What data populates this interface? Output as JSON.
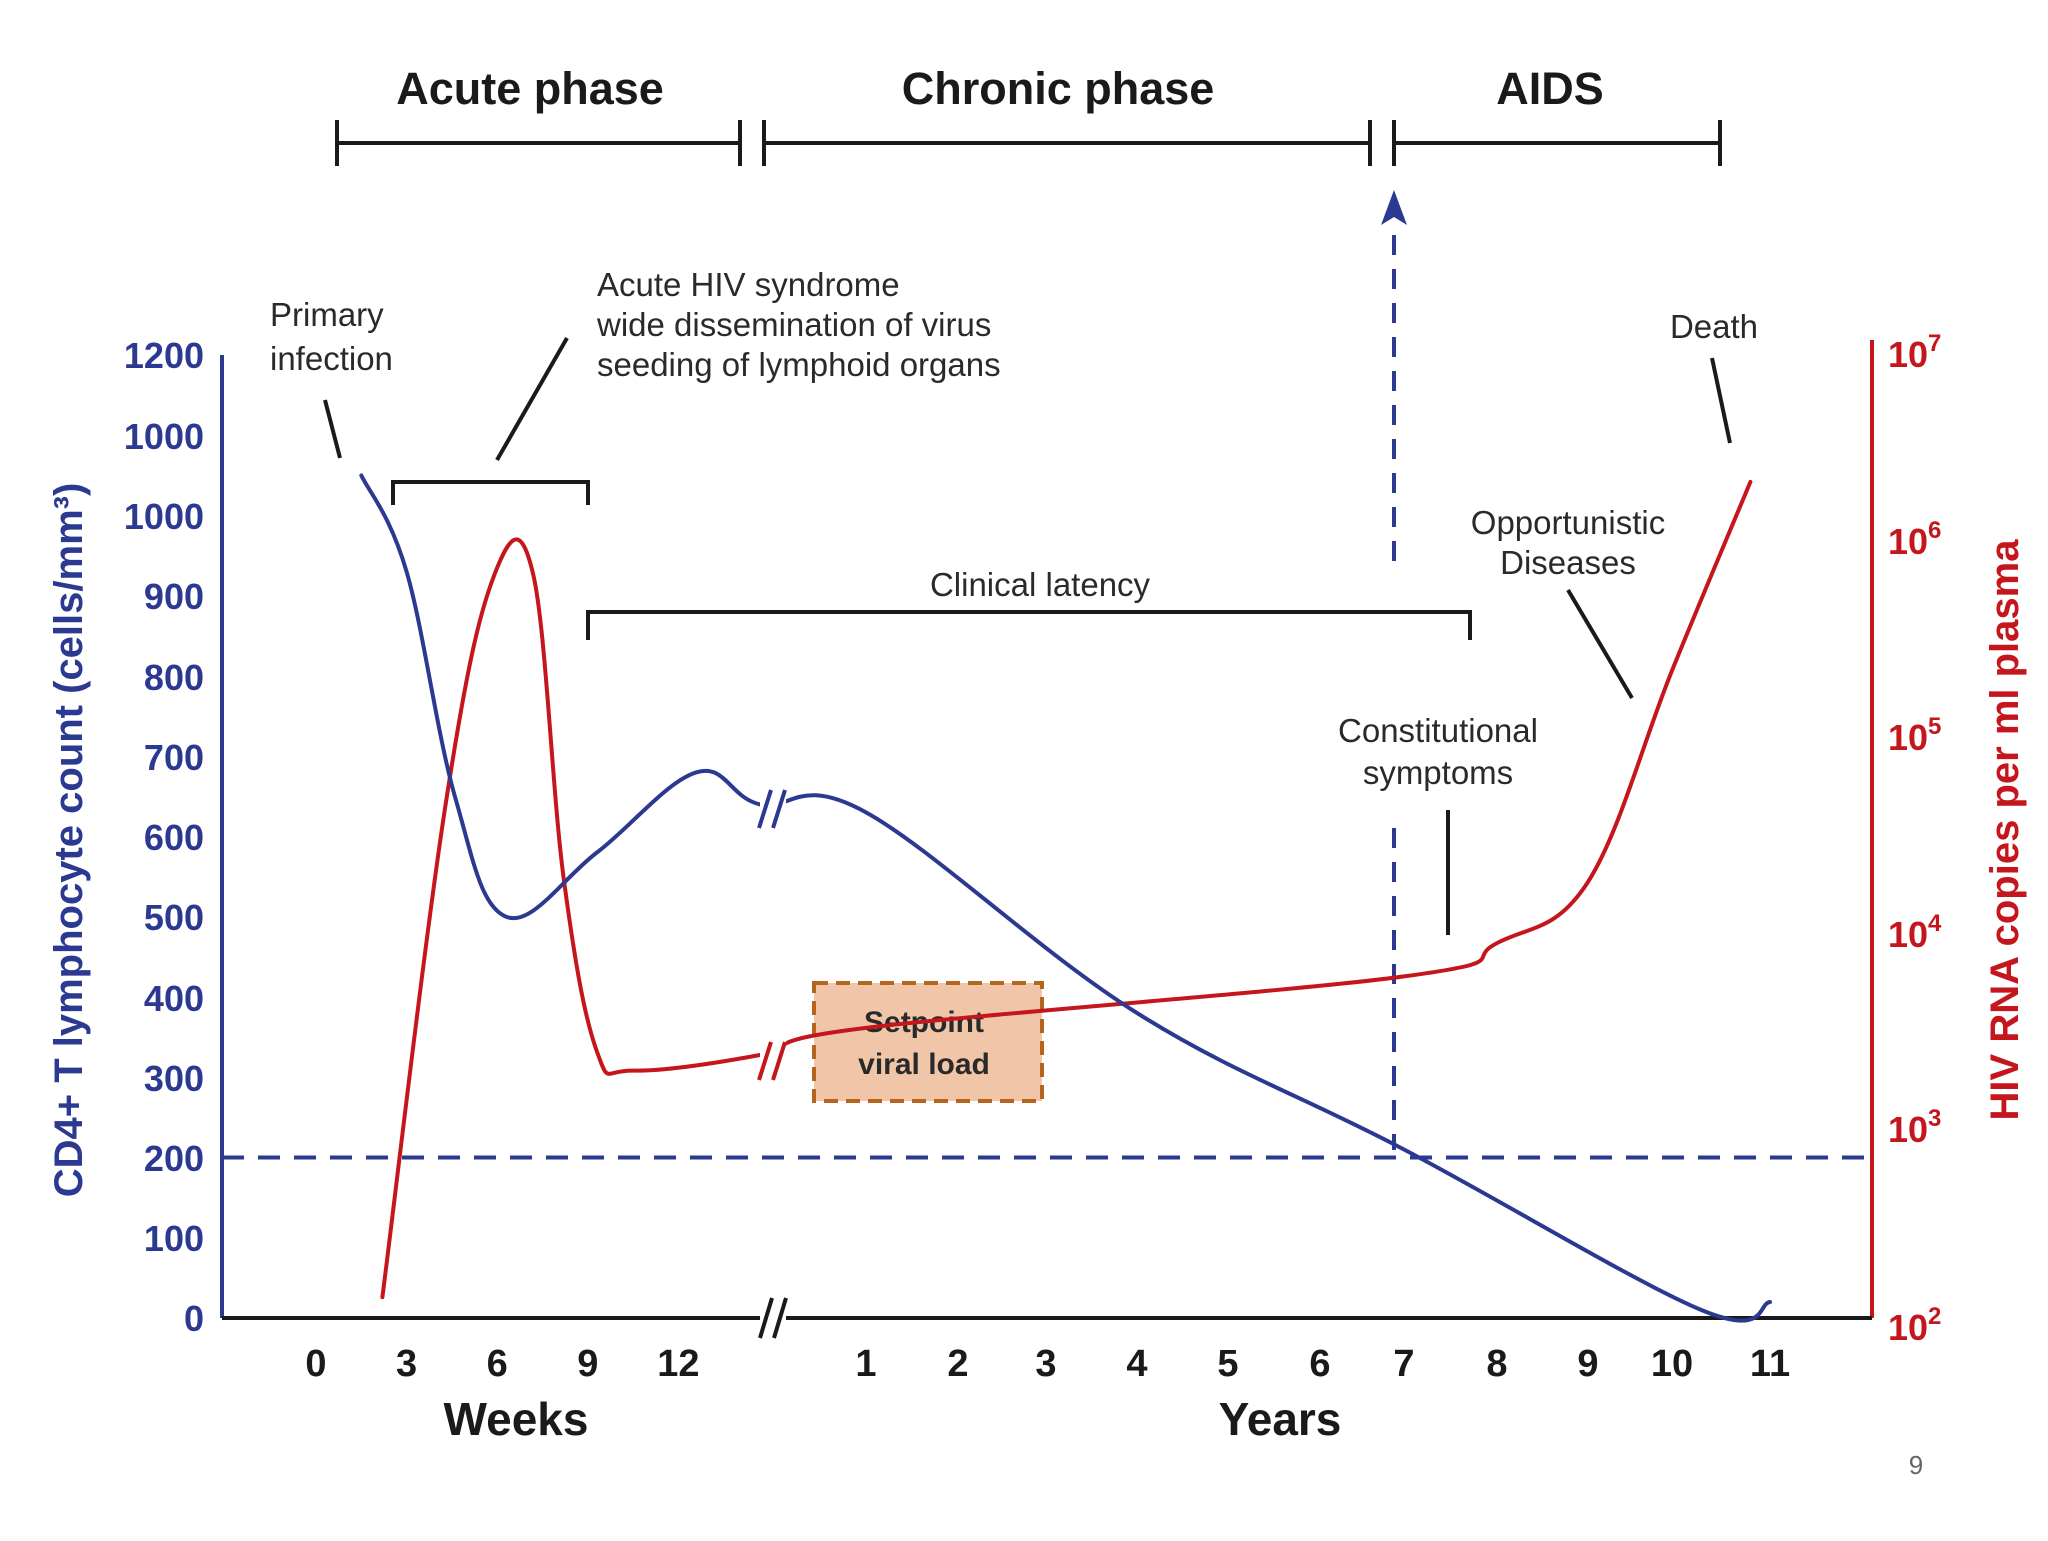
{
  "colors": {
    "cd4": "#2b3990",
    "viral": "#c4161c",
    "ink": "#1a1a1a",
    "setpoint_fill": "#f1c6a8",
    "setpoint_border": "#b5651d"
  },
  "phases": [
    {
      "label": "Acute phase"
    },
    {
      "label": "Chronic phase"
    },
    {
      "label": "AIDS"
    }
  ],
  "annotations": {
    "primary_infection": [
      "Primary",
      "infection"
    ],
    "acute_syndrome": [
      "Acute HIV syndrome",
      "wide dissemination of virus",
      "seeding of lymphoid organs"
    ],
    "clinical_latency": "Clinical latency",
    "constitutional": [
      "Constitutional",
      "symptoms"
    ],
    "opportunistic": [
      "Opportunistic",
      "Diseases"
    ],
    "death": "Death",
    "setpoint": [
      "Setpoint",
      "viral load"
    ]
  },
  "page_number": "9",
  "chart_data": {
    "type": "line",
    "title": "",
    "x_axis": {
      "weeks_label": "Weeks",
      "years_label": "Years",
      "weeks_ticks": [
        "0",
        "3",
        "6",
        "9",
        "12"
      ],
      "years_ticks": [
        "1",
        "2",
        "3",
        "4",
        "5",
        "6",
        "7",
        "8",
        "9",
        "10",
        "11"
      ],
      "break": "//"
    },
    "y_left": {
      "label": "CD4+ T lymphocyte count (cells/mm³)",
      "ticks": [
        "1200",
        "1000",
        "1000",
        "900",
        "800",
        "700",
        "600",
        "500",
        "400",
        "300",
        "200",
        "100",
        "0"
      ],
      "range": [
        0,
        1200
      ]
    },
    "y_right": {
      "label": "HIV RNA copies per ml plasma",
      "ticks": [
        {
          "base": "10",
          "exp": "7"
        },
        {
          "base": "10",
          "exp": "6"
        },
        {
          "base": "10",
          "exp": "5"
        },
        {
          "base": "10",
          "exp": "4"
        },
        {
          "base": "10",
          "exp": "3"
        },
        {
          "base": "10",
          "exp": "2"
        }
      ],
      "scale": "log"
    },
    "threshold": {
      "cd4": 200,
      "style": "dashed"
    },
    "aids_onset_year": 7,
    "series": [
      {
        "name": "CD4+ T lymphocyte count",
        "axis": "left",
        "points": [
          {
            "unit": "weeks",
            "x": 1.5,
            "y": 1050
          },
          {
            "unit": "weeks",
            "x": 3,
            "y": 930
          },
          {
            "unit": "weeks",
            "x": 4.6,
            "y": 650
          },
          {
            "unit": "weeks",
            "x": 6.3,
            "y": 500
          },
          {
            "unit": "weeks",
            "x": 9.3,
            "y": 580
          },
          {
            "unit": "weeks",
            "x": 12.6,
            "y": 680
          },
          {
            "unit": "weeks",
            "x": 14.7,
            "y": 640
          },
          {
            "unit": "years",
            "x": 1,
            "y": 630
          },
          {
            "unit": "years",
            "x": 4,
            "y": 380
          },
          {
            "unit": "years",
            "x": 7,
            "y": 210
          },
          {
            "unit": "years",
            "x": 10.3,
            "y": 10
          },
          {
            "unit": "years",
            "x": 11,
            "y": 20
          }
        ]
      },
      {
        "name": "HIV RNA copies per ml plasma",
        "axis": "right",
        "points": [
          {
            "unit": "weeks",
            "x": 2.2,
            "y": 120
          },
          {
            "unit": "weeks",
            "x": 4.3,
            "y": 50000
          },
          {
            "unit": "weeks",
            "x": 5.9,
            "y": 800000
          },
          {
            "unit": "weeks",
            "x": 7.2,
            "y": 800000
          },
          {
            "unit": "weeks",
            "x": 8.2,
            "y": 20000
          },
          {
            "unit": "weeks",
            "x": 9.3,
            "y": 2400
          },
          {
            "unit": "weeks",
            "x": 10.5,
            "y": 1900
          },
          {
            "unit": "weeks",
            "x": 14.7,
            "y": 2300
          },
          {
            "unit": "years",
            "x": 1,
            "y": 3200
          },
          {
            "unit": "years",
            "x": 7,
            "y": 6000
          },
          {
            "unit": "years",
            "x": 8,
            "y": 9000
          },
          {
            "unit": "years",
            "x": 9,
            "y": 19000
          },
          {
            "unit": "years",
            "x": 10,
            "y": 250000
          },
          {
            "unit": "years",
            "x": 10.8,
            "y": 2500000
          }
        ]
      }
    ]
  }
}
